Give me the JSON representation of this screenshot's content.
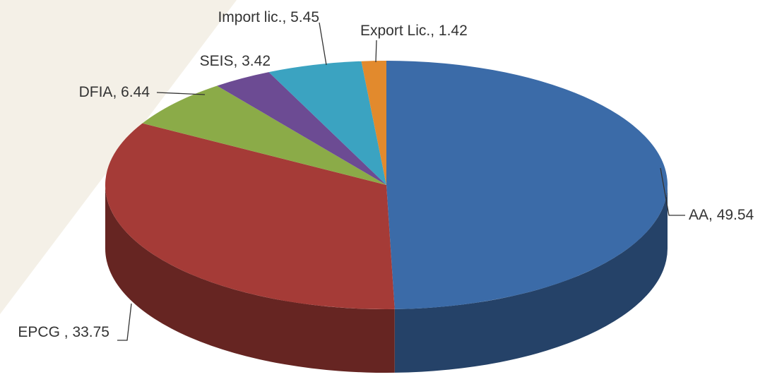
{
  "chart_data": {
    "type": "pie",
    "categories": [
      "AA",
      "EPCG ",
      "DFIA",
      "SEIS",
      "Import lic.",
      "Export Lic."
    ],
    "values": [
      49.54,
      33.75,
      6.44,
      3.42,
      5.45,
      1.42
    ],
    "colors": [
      "#3b6ba8",
      "#a53b37",
      "#8bab48",
      "#6c4b93",
      "#3ba3c1",
      "#e28a2d"
    ],
    "separator": ", "
  }
}
